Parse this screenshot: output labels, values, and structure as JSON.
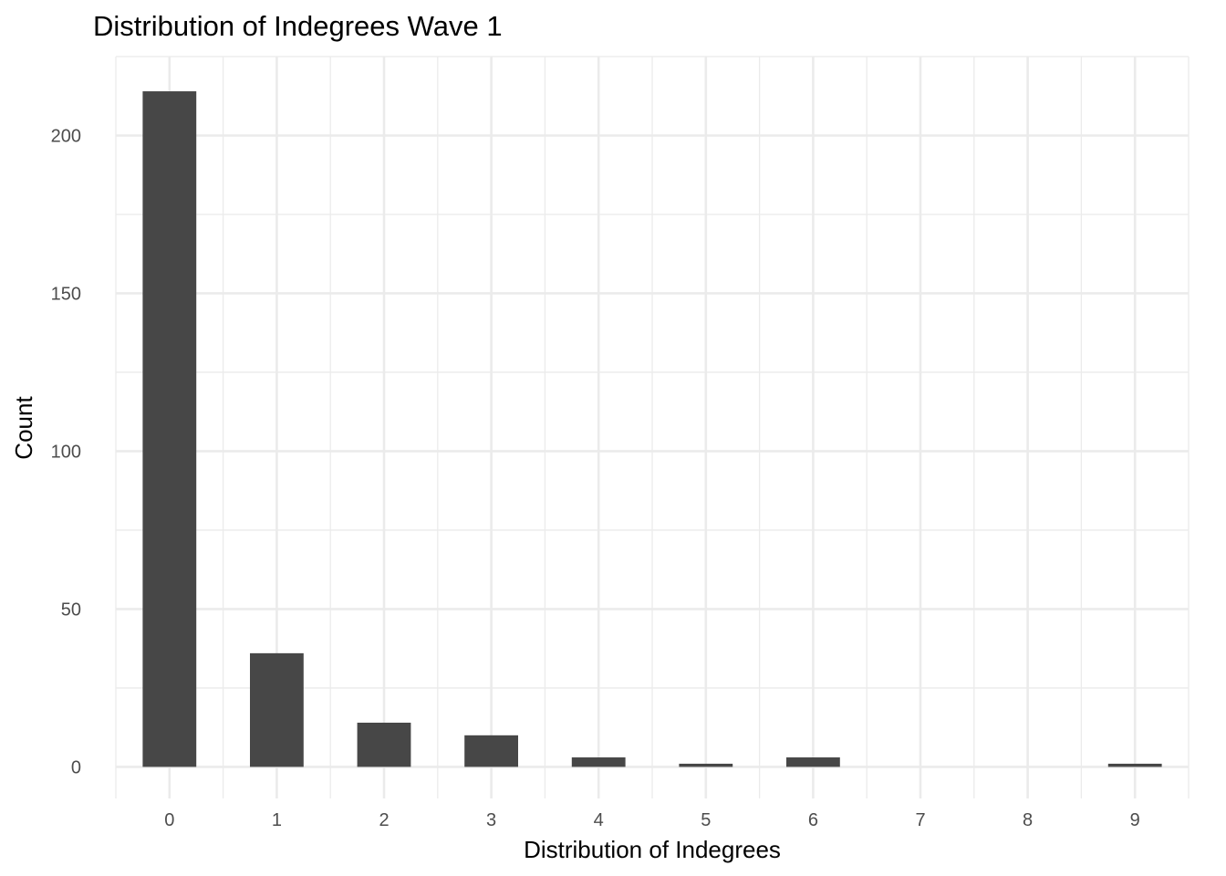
{
  "chart_data": {
    "type": "bar",
    "title": "Distribution of Indegrees Wave 1",
    "xlabel": "Distribution of Indegrees",
    "ylabel": "Count",
    "categories": [
      "0",
      "1",
      "2",
      "3",
      "4",
      "5",
      "6",
      "7",
      "8",
      "9"
    ],
    "values": [
      214,
      36,
      14,
      10,
      3,
      1,
      3,
      0,
      0,
      1
    ],
    "ylim": [
      -10,
      225
    ],
    "yticks": [
      0,
      50,
      100,
      150,
      200
    ],
    "grid": true,
    "legend": "none",
    "bar_color": "#474747",
    "grid_color": "#ebebeb",
    "background": "#ffffff"
  }
}
